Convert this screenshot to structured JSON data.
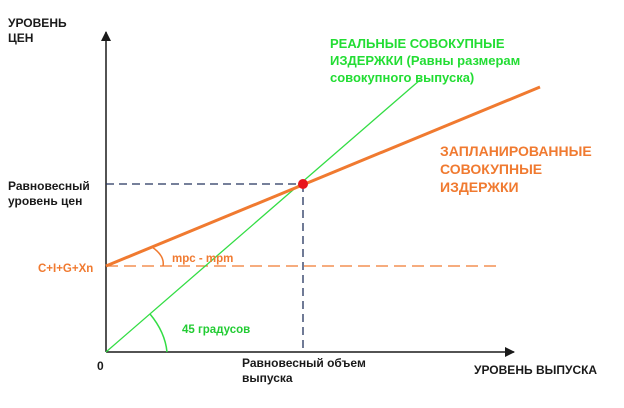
{
  "colors": {
    "axis": "#1a1a1a",
    "guide": "#24345e",
    "planned": "#f07a30",
    "actual": "#33dd44",
    "point": "#e8141c"
  },
  "labels": {
    "y_axis": [
      "УРОВЕНЬ",
      "ЦЕН"
    ],
    "x_axis": "УРОВЕНЬ ВЫПУСКА",
    "origin": "0",
    "equilibrium_price": [
      "Равновесный",
      "уровень цен"
    ],
    "intercept": "C+I+G+Xn",
    "equilibrium_output": [
      "Равновесный объем",
      "выпуска"
    ],
    "actual_costs": [
      "РЕАЛЬНЫЕ СОВОКУПНЫЕ",
      "ИЗДЕРЖКИ (Равны размерам",
      "совокупного выпуска)"
    ],
    "planned_costs": [
      "ЗАПЛАНИРОВАННЫЕ",
      "СОВОКУПНЫЕ",
      "ИЗДЕРЖКИ"
    ],
    "slope_angle": "mpc - mpm",
    "angle_45": "45 градусов"
  }
}
